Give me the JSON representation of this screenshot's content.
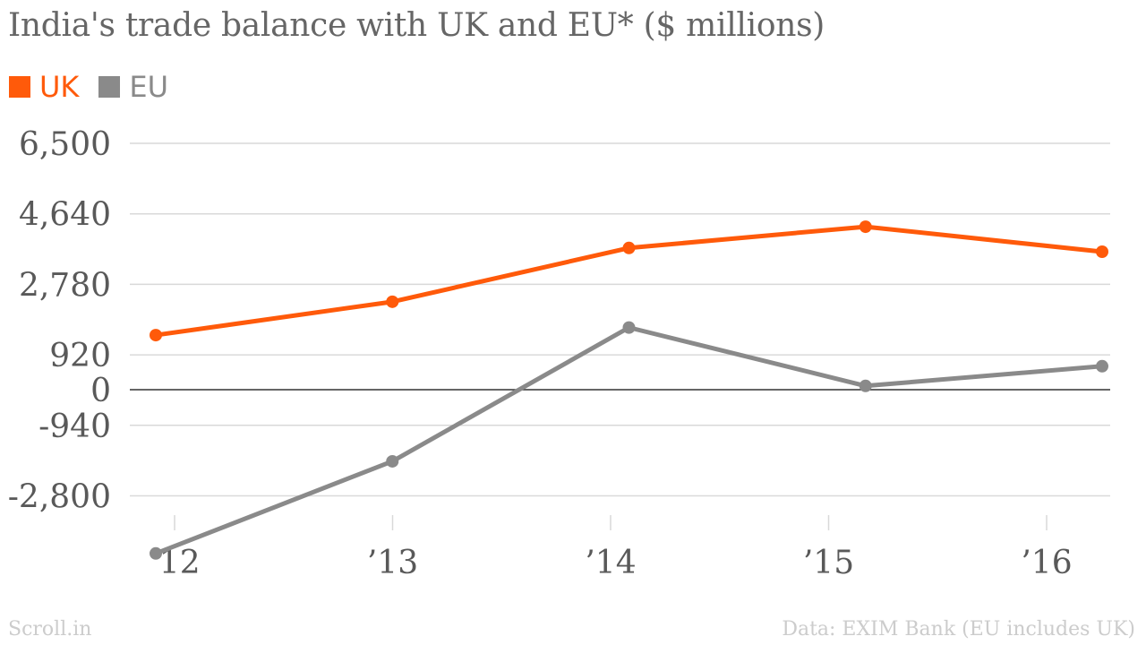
{
  "title": "India's trade balance with UK and EU* ($ millions)",
  "footer": {
    "source_left": "Scroll.in",
    "source_right": "Data: EXIM Bank (EU includes UK)"
  },
  "colors": {
    "uk": "#ff5a0a",
    "eu": "#8a8a8a",
    "grid": "#d9d9d9",
    "zero_line": "#333333",
    "text": "#595959"
  },
  "chart_data": {
    "type": "line",
    "title": "India's trade balance with UK and EU* ($ millions)",
    "categories": [
      "’12",
      "’13",
      "’14",
      "’15",
      "’16"
    ],
    "y_ticks": [
      6500,
      4640,
      2780,
      920,
      0,
      -940,
      -2800
    ],
    "y_tick_labels": [
      "6,500",
      "4,640",
      "2,780",
      "920",
      "0",
      "-940",
      "-2,800"
    ],
    "ylim": [
      -2800,
      6500
    ],
    "grid": true,
    "legend_position": "top-left",
    "series": [
      {
        "name": "UK",
        "color": "#ff5a0a",
        "values": [
          1440,
          2320,
          3740,
          4300,
          3640
        ]
      },
      {
        "name": "EU",
        "color": "#8a8a8a",
        "values": [
          -4320,
          -1890,
          1640,
          100,
          620
        ]
      }
    ]
  }
}
